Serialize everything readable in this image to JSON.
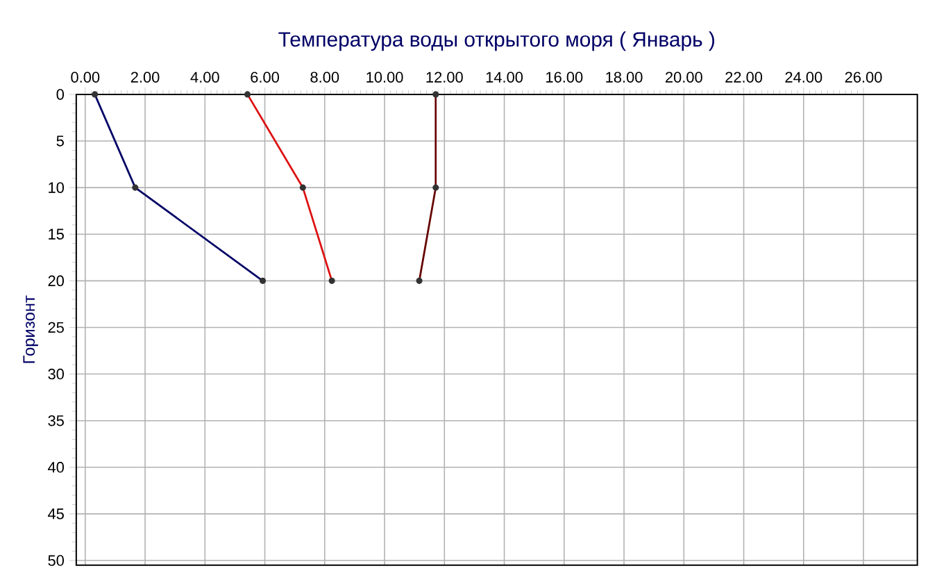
{
  "chart_data": {
    "type": "line",
    "title": "Температура воды открытого моря    ( Январь )",
    "ylabel": "Горизонт",
    "series": [
      {
        "color": "#000066",
        "x": [
          0.32,
          1.67,
          5.93
        ],
        "values": [
          0,
          10,
          20
        ]
      },
      {
        "color": "#dd1111",
        "x": [
          5.42,
          7.27,
          8.24
        ],
        "values": [
          0,
          10,
          20
        ]
      },
      {
        "color": "#660000",
        "x": [
          11.71,
          11.71,
          11.16
        ],
        "values": [
          0,
          10,
          20
        ]
      }
    ],
    "xlim": [
      -0.3,
      27.8
    ],
    "ylim": [
      50.5,
      0
    ],
    "xticks": [
      {
        "value": 0,
        "label": "0.00"
      },
      {
        "value": 2,
        "label": "2.00"
      },
      {
        "value": 4,
        "label": "4.00"
      },
      {
        "value": 6,
        "label": "6.00"
      },
      {
        "value": 8,
        "label": "8.00"
      },
      {
        "value": 10,
        "label": "10.00"
      },
      {
        "value": 12,
        "label": "12.00"
      },
      {
        "value": 14,
        "label": "14.00"
      },
      {
        "value": 16,
        "label": "16.00"
      },
      {
        "value": 18,
        "label": "18.00"
      },
      {
        "value": 20,
        "label": "20.00"
      },
      {
        "value": 22,
        "label": "22.00"
      },
      {
        "value": 24,
        "label": "24.00"
      },
      {
        "value": 26,
        "label": "26.00"
      }
    ],
    "yticks": [
      0,
      5,
      10,
      15,
      20,
      25,
      30,
      35,
      40,
      45,
      50
    ],
    "grid": true,
    "marker": "circle",
    "line_style": "solid"
  }
}
